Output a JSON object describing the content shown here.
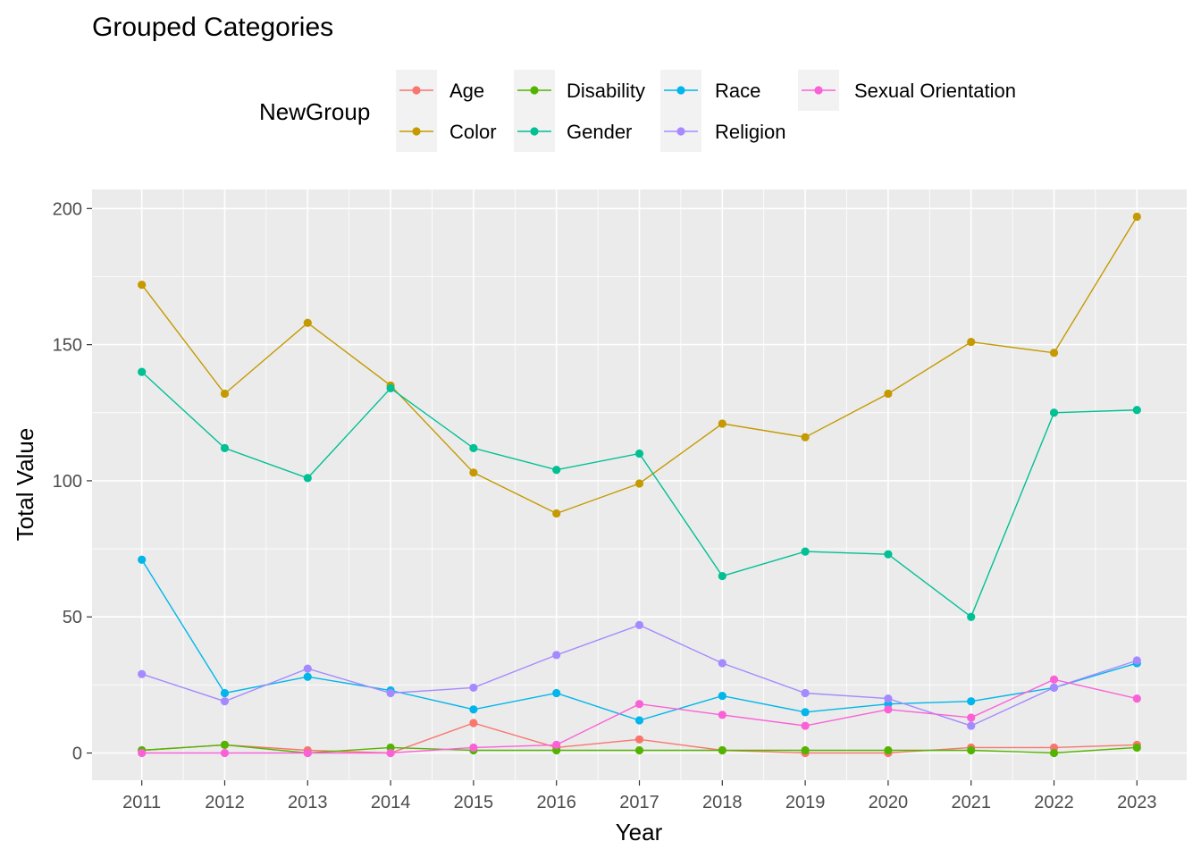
{
  "chart_data": {
    "type": "line",
    "title": "Grouped Categories",
    "xlabel": "Year",
    "ylabel": "Total Value",
    "x": [
      2011,
      2012,
      2013,
      2014,
      2015,
      2016,
      2017,
      2018,
      2019,
      2020,
      2021,
      2022,
      2023
    ],
    "x_tick_labels": [
      "2011",
      "2012",
      "2013",
      "2014",
      "2015",
      "2016",
      "2017",
      "2018",
      "2019",
      "2020",
      "2021",
      "2022",
      "2023"
    ],
    "xlim": [
      2010.4,
      2023.6
    ],
    "ylim": [
      -10,
      207
    ],
    "y_ticks": [
      0,
      50,
      100,
      150,
      200
    ],
    "y_tick_labels": [
      "0",
      "50",
      "100",
      "150",
      "200"
    ],
    "grid": true,
    "markers": true,
    "legend": {
      "title": "NewGroup",
      "position": "top",
      "items": [
        "Age",
        "Color",
        "Disability",
        "Gender",
        "Race",
        "Religion",
        "Sexual Orientation"
      ]
    },
    "series": [
      {
        "name": "Age",
        "color": "#F8766D",
        "values": [
          1,
          3,
          1,
          0,
          11,
          2,
          5,
          1,
          0,
          0,
          2,
          2,
          3
        ]
      },
      {
        "name": "Color",
        "color": "#C49A00",
        "values": [
          172,
          132,
          158,
          135,
          103,
          88,
          99,
          121,
          116,
          132,
          151,
          147,
          197
        ]
      },
      {
        "name": "Disability",
        "color": "#53B400",
        "values": [
          1,
          3,
          0,
          2,
          1,
          1,
          1,
          1,
          1,
          1,
          1,
          0,
          2
        ]
      },
      {
        "name": "Gender",
        "color": "#00C094",
        "values": [
          140,
          112,
          101,
          134,
          112,
          104,
          110,
          65,
          74,
          73,
          50,
          125,
          126
        ]
      },
      {
        "name": "Race",
        "color": "#00B6EB",
        "values": [
          71,
          22,
          28,
          23,
          16,
          22,
          12,
          21,
          15,
          18,
          19,
          24,
          33
        ]
      },
      {
        "name": "Religion",
        "color": "#A58AFF",
        "values": [
          29,
          19,
          31,
          22,
          24,
          36,
          47,
          33,
          22,
          20,
          10,
          24,
          34
        ]
      },
      {
        "name": "Sexual Orientation",
        "color": "#FB61D7",
        "values": [
          0,
          0,
          0,
          0,
          2,
          3,
          18,
          14,
          10,
          16,
          13,
          27,
          20
        ]
      }
    ]
  }
}
